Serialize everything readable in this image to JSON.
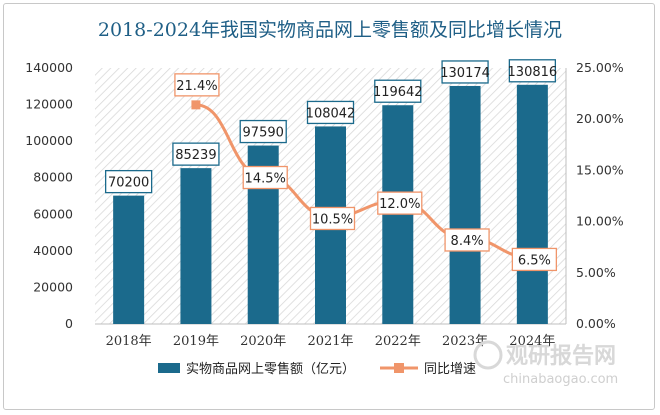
{
  "chart_data": {
    "type": "bar",
    "title": "2018-2024年我国实物商品网上零售额及同比增长情况",
    "categories": [
      "2018年",
      "2019年",
      "2020年",
      "2021年",
      "2022年",
      "2023年",
      "2024年"
    ],
    "series": [
      {
        "name": "实物商品网上零售额（亿元）",
        "type": "bar",
        "axis": "left",
        "color": "#1b6a8c",
        "values": [
          70200,
          85239,
          97590,
          108042,
          119642,
          130174,
          130816
        ],
        "labels": [
          "70200",
          "85239",
          "97590",
          "108042",
          "119642",
          "130174",
          "130816"
        ]
      },
      {
        "name": "同比增速",
        "type": "line",
        "axis": "right",
        "color": "#f0956a",
        "values": [
          null,
          21.4,
          14.5,
          10.5,
          12.0,
          8.4,
          6.5
        ],
        "labels": [
          "",
          "21.4%",
          "14.5%",
          "10.5%",
          "12.0%",
          "8.4%",
          "6.5%"
        ]
      }
    ],
    "y_left": {
      "lim": [
        0,
        140000
      ],
      "ticks": [
        0,
        20000,
        40000,
        60000,
        80000,
        100000,
        120000,
        140000
      ],
      "tick_labels": [
        "0",
        "20000",
        "40000",
        "60000",
        "80000",
        "100000",
        "120000",
        "140000"
      ]
    },
    "y_right": {
      "lim": [
        0,
        25
      ],
      "ticks": [
        0,
        5,
        10,
        15,
        20,
        25
      ],
      "tick_labels": [
        "0.00%",
        "5.00%",
        "10.00%",
        "15.00%",
        "20.00%",
        "25.00%"
      ]
    },
    "grid": false,
    "legend_position": "bottom"
  },
  "watermark": {
    "text_cn": "观研报告网",
    "text_en": "chinabaogao.com",
    "color": "#d8d8d8"
  },
  "colors": {
    "title": "#1f5f86",
    "bar": "#1b6a8c",
    "line": "#f0956a",
    "label_box_border": "#1b6a8c"
  }
}
